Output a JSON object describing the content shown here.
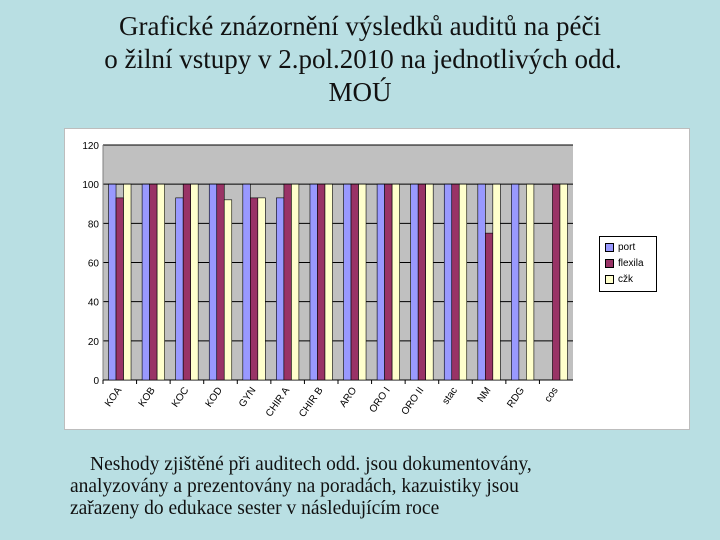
{
  "title": {
    "lines": [
      "Grafické znázornění výsledků auditů na péči",
      "o žilní vstupy v 2.pol.2010 na jednotlivých odd.",
      "MOÚ"
    ]
  },
  "chart_data": {
    "type": "bar",
    "categories": [
      "KOA",
      "KOB",
      "KOC",
      "KOD",
      "GYN",
      "CHIR A",
      "CHIR B",
      "ARO",
      "ORO I",
      "ORO II",
      "stac",
      "NM",
      "RDG",
      "cos"
    ],
    "series": [
      {
        "name": "port",
        "color": "#9999ff",
        "values": [
          100,
          100,
          93,
          100,
          100,
          93,
          100,
          100,
          100,
          100,
          100,
          100,
          100,
          null
        ]
      },
      {
        "name": "flexila",
        "color": "#993366",
        "values": [
          93,
          100,
          100,
          100,
          93,
          100,
          100,
          100,
          100,
          100,
          100,
          75,
          null,
          100
        ]
      },
      {
        "name": "cžk",
        "color": "#ffffcc",
        "values": [
          100,
          100,
          100,
          92,
          93,
          100,
          100,
          100,
          100,
          100,
          100,
          100,
          100,
          100
        ]
      }
    ],
    "ylim": [
      0,
      120
    ],
    "yticks": [
      0,
      20,
      40,
      60,
      80,
      100,
      120
    ],
    "grid": true,
    "legend": "right"
  },
  "footnote": {
    "lines": [
      "Neshody zjištěné při auditech  odd. jsou dokumentovány,",
      "analyzovány a prezentovány na poradách, kazuistiky jsou",
      "zařazeny do edukace sester v následujícím roce"
    ]
  }
}
